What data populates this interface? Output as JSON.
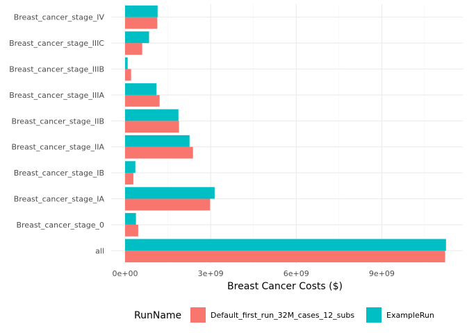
{
  "chart_data": {
    "type": "bar",
    "orientation": "horizontal",
    "title": "",
    "xlabel": "Breast Cancer Costs ($)",
    "ylabel": "",
    "xlim": [
      0,
      11300000000
    ],
    "x_ticks": [
      0,
      3000000000,
      6000000000,
      9000000000
    ],
    "x_tick_labels": [
      "0e+00",
      "3e+09",
      "6e+09",
      "9e+09"
    ],
    "categories": [
      "all",
      "Breast_cancer_stage_0",
      "Breast_cancer_stage_IA",
      "Breast_cancer_stage_IB",
      "Breast_cancer_stage_IIA",
      "Breast_cancer_stage_IIB",
      "Breast_cancer_stage_IIIA",
      "Breast_cancer_stage_IIIB",
      "Breast_cancer_stage_IIIC",
      "Breast_cancer_stage_IV"
    ],
    "series": [
      {
        "name": "Default_first_run_32M_cases_12_subs",
        "color": "#F8766D",
        "values": [
          11220000000,
          460000000,
          2980000000,
          290000000,
          2380000000,
          1890000000,
          1210000000,
          210000000,
          600000000,
          1130000000
        ]
      },
      {
        "name": "ExampleRun",
        "color": "#00BFC4",
        "values": [
          11250000000,
          380000000,
          3140000000,
          360000000,
          2260000000,
          1870000000,
          1100000000,
          90000000,
          840000000,
          1140000000
        ]
      }
    ],
    "legend": {
      "title": "RunName",
      "position": "bottom"
    },
    "grid": true,
    "theme": "minimal"
  }
}
